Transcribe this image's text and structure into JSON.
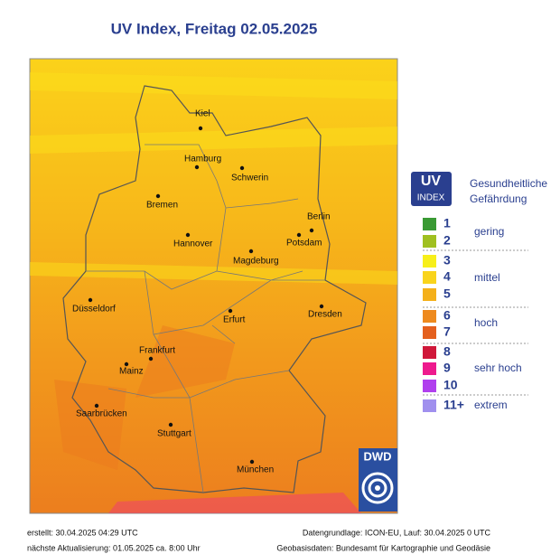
{
  "title": "UV Index, Freitag 02.05.2025",
  "map": {
    "cities": [
      {
        "name": "Kiel"
      },
      {
        "name": "Hamburg"
      },
      {
        "name": "Schwerin"
      },
      {
        "name": "Bremen"
      },
      {
        "name": "Berlin"
      },
      {
        "name": "Potsdam"
      },
      {
        "name": "Hannover"
      },
      {
        "name": "Magdeburg"
      },
      {
        "name": "Düsseldorf"
      },
      {
        "name": "Erfurt"
      },
      {
        "name": "Dresden"
      },
      {
        "name": "Frankfurt"
      },
      {
        "name": "Mainz"
      },
      {
        "name": "Saarbrücken"
      },
      {
        "name": "Stuttgart"
      },
      {
        "name": "München"
      }
    ]
  },
  "legend": {
    "uv_label": "UV",
    "index_label": "INDEX",
    "heading": [
      "Gesundheitliche",
      "Gefährdung"
    ],
    "levels": [
      {
        "label": "1",
        "color": "#3a9a34"
      },
      {
        "label": "2",
        "color": "#a0c020"
      },
      {
        "label": "3",
        "color": "#f7ef1a"
      },
      {
        "label": "4",
        "color": "#f9d41c"
      },
      {
        "label": "5",
        "color": "#f4b01a"
      },
      {
        "label": "6",
        "color": "#ee8a1e"
      },
      {
        "label": "7",
        "color": "#e4601e"
      },
      {
        "label": "8",
        "color": "#d0183a"
      },
      {
        "label": "9",
        "color": "#ee1a8e"
      },
      {
        "label": "10",
        "color": "#b040ee"
      },
      {
        "label": "11+",
        "color": "#a090ee"
      }
    ],
    "categories": [
      "gering",
      "mittel",
      "hoch",
      "sehr hoch",
      "extrem"
    ]
  },
  "logo": "DWD",
  "footer": {
    "created": "erstellt: 30.04.2025 04:29 UTC",
    "next_update": "nächste Aktualisierung:  01.05.2025 ca. 8:00 Uhr",
    "data_basis": "Datengrundlage: ICON-EU, Lauf: 30.04.2025 0 UTC",
    "geo_basis": "Geobasisdaten: Bundesamt für Kartographie und Geodäsie"
  }
}
